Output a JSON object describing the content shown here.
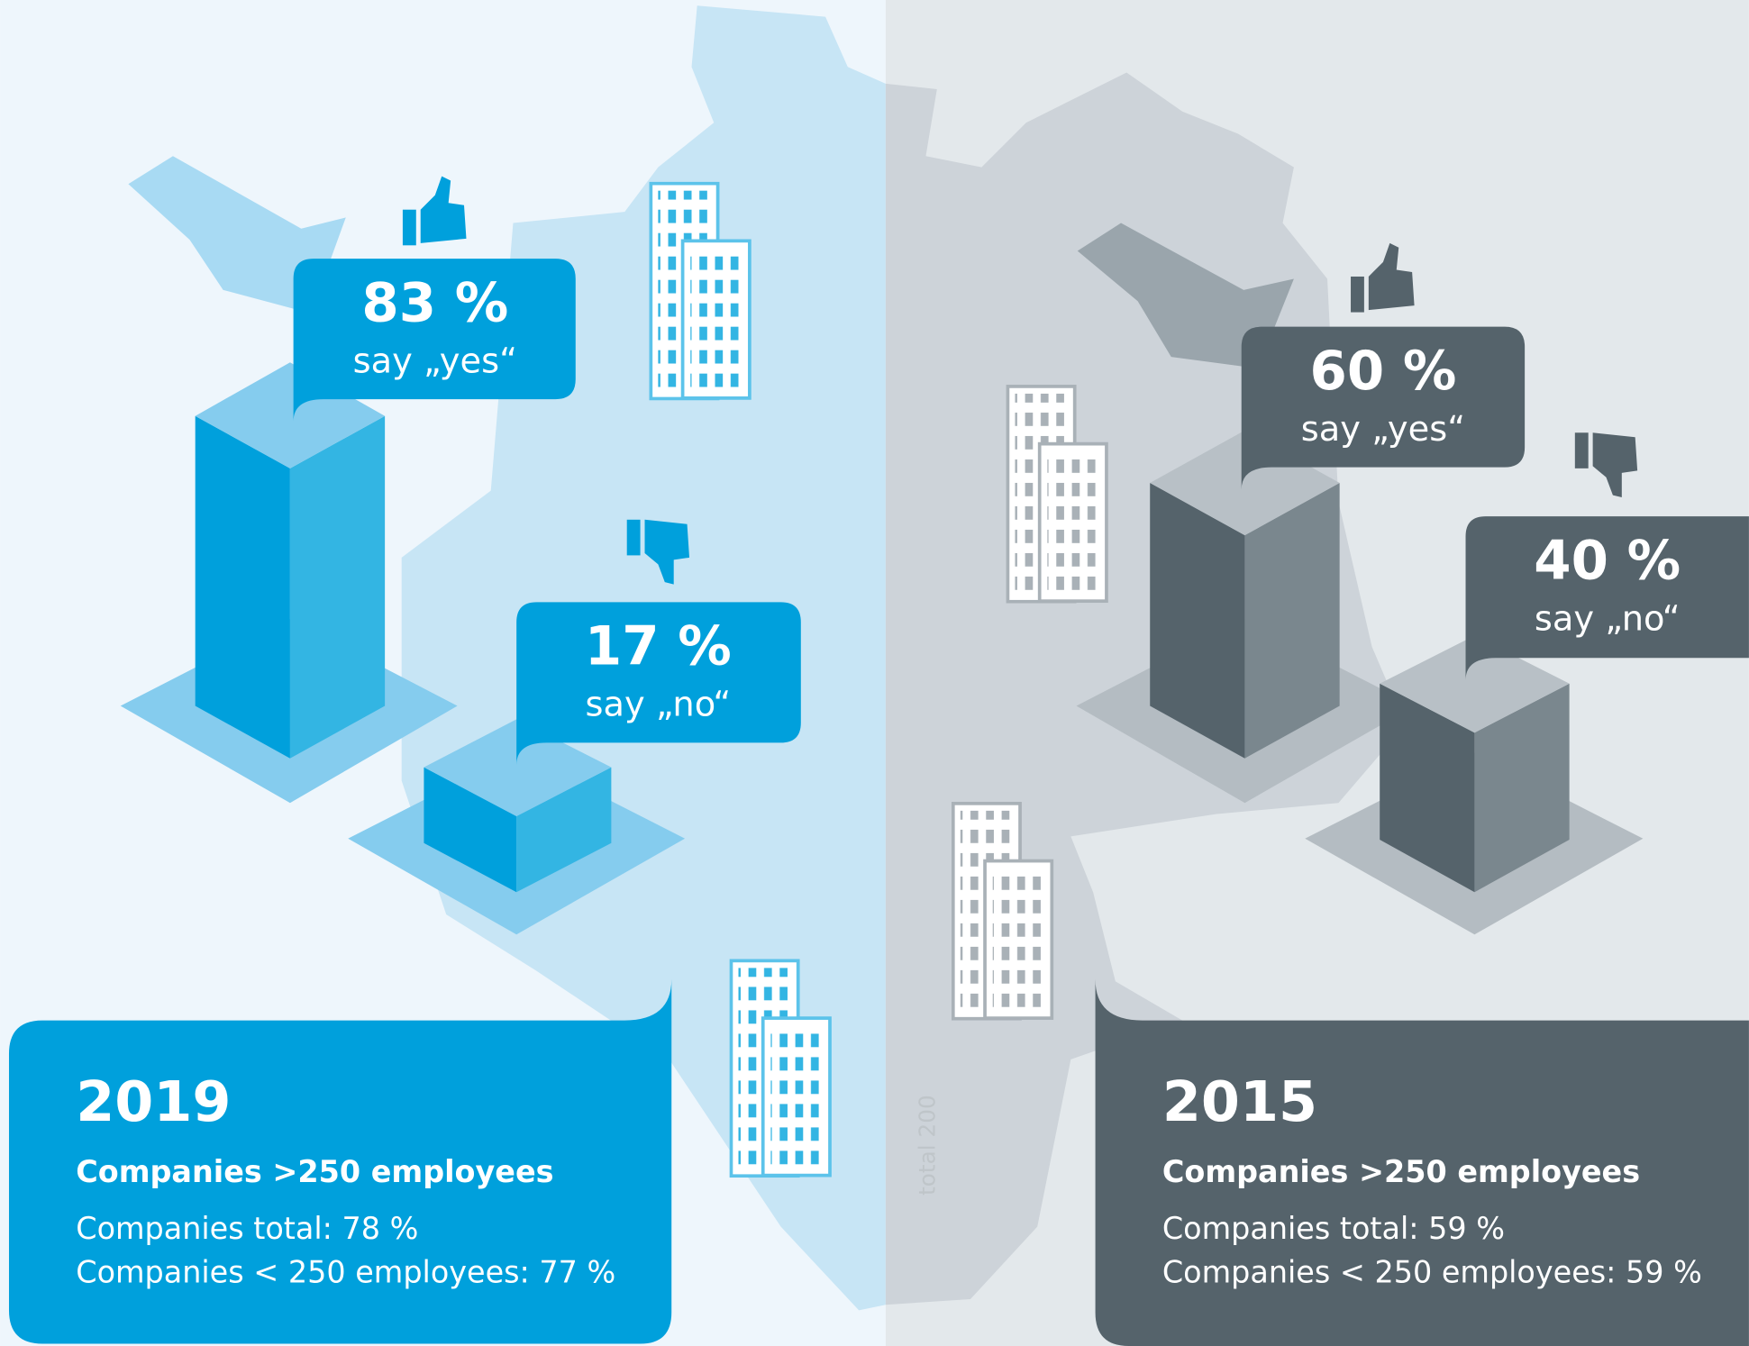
{
  "panels": [
    {
      "year": "2019",
      "subtitle": "Companies >250 employees",
      "lines": [
        "Companies total: 78  %",
        "Companies < 250 employees: 77  %"
      ],
      "yes": {
        "value": "83 %",
        "label": "say „yes“"
      },
      "no": {
        "value": "17 %",
        "label": "say „no“"
      }
    },
    {
      "year": "2015",
      "subtitle": "Companies >250 employees",
      "lines": [
        "Companies total: 59  %",
        "Companies < 250 employees: 59  %"
      ],
      "yes": {
        "value": "60 %",
        "label": "say „yes“"
      },
      "no": {
        "value": "40 %",
        "label": "say „no“"
      }
    }
  ],
  "side_note": "total 200"
}
